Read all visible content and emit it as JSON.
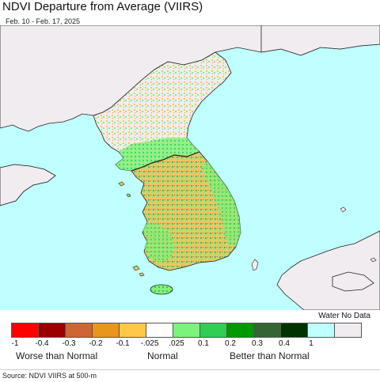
{
  "header": {
    "title": "NDVI Departure from Average (VIIRS)",
    "subtitle": "Feb. 10 - Feb. 17, 2025"
  },
  "map": {
    "colors": {
      "water": "#bfffff",
      "land_no_data": "#f0ecf0",
      "border": "#222222"
    }
  },
  "legend": {
    "water_no_data_label": "Water No Data",
    "swatches": [
      {
        "color": "#ff0000"
      },
      {
        "color": "#990000"
      },
      {
        "color": "#cc6633"
      },
      {
        "color": "#e8961e"
      },
      {
        "color": "#ffc84b"
      },
      {
        "color": "#ffffff"
      },
      {
        "color": "#7cf47c"
      },
      {
        "color": "#33cc55"
      },
      {
        "color": "#009900"
      },
      {
        "color": "#336633"
      },
      {
        "color": "#003300"
      },
      {
        "color": "#bfffff"
      },
      {
        "color": "#f0ecf0"
      }
    ],
    "ticks": [
      "-1",
      "-0.4",
      "-0.3",
      "-0.2",
      "-0.1",
      "-.025",
      ".025",
      "0.1",
      "0.2",
      "0.3",
      "0.4",
      "1"
    ],
    "categories": {
      "worse": "Worse than Normal",
      "normal": "Normal",
      "better": "Better than Normal"
    }
  },
  "footer": {
    "source": "Source: NDVI VIIRS at 500-m"
  }
}
